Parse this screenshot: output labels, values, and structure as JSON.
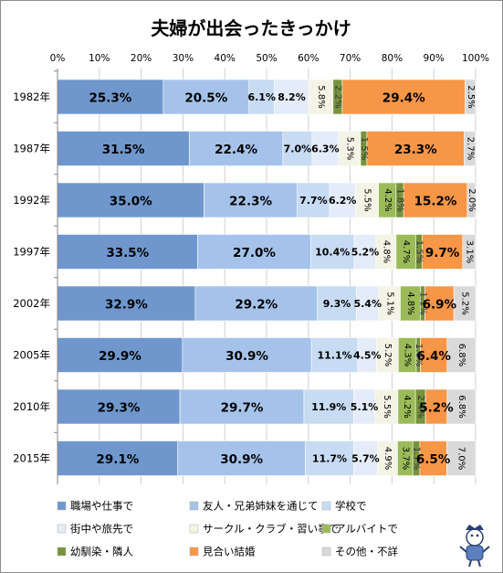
{
  "chart_data": {
    "type": "bar",
    "stacked": true,
    "orientation": "horizontal",
    "normalized": true,
    "title": "夫婦が出会ったきっかけ",
    "categories": [
      "1982年",
      "1987年",
      "1992年",
      "1997年",
      "2002年",
      "2005年",
      "2010年",
      "2015年"
    ],
    "xlim": [
      0,
      100
    ],
    "xticks": [
      "0%",
      "10%",
      "20%",
      "30%",
      "40%",
      "50%",
      "60%",
      "70%",
      "80%",
      "90%",
      "100%"
    ],
    "grid": true,
    "legend_position": "bottom",
    "series": [
      {
        "name": "職場や仕事で",
        "color": "#6f97cd",
        "values": [
          25.3,
          31.5,
          35.0,
          33.5,
          32.9,
          29.9,
          29.3,
          29.1
        ]
      },
      {
        "name": "友人・兄弟姉妹を通じて",
        "color": "#a5c3ea",
        "values": [
          20.5,
          22.4,
          22.3,
          27.0,
          29.2,
          30.9,
          29.7,
          30.9
        ]
      },
      {
        "name": "学校で",
        "color": "#c7dbf3",
        "values": [
          6.1,
          7.0,
          7.7,
          10.4,
          9.3,
          11.1,
          11.9,
          11.7
        ]
      },
      {
        "name": "街中や旅先で",
        "color": "#e3ecf8",
        "values": [
          8.2,
          6.3,
          6.2,
          5.2,
          5.4,
          4.5,
          5.1,
          5.7
        ]
      },
      {
        "name": "サークル・クラブ・習い事で",
        "color": "#f3f4e6",
        "values": [
          5.8,
          5.3,
          5.5,
          4.8,
          5.1,
          5.2,
          5.5,
          4.9
        ]
      },
      {
        "name": "アルバイトで",
        "color": "#9bbb59",
        "values": [
          null,
          null,
          4.2,
          4.7,
          4.8,
          4.3,
          4.2,
          3.7
        ]
      },
      {
        "name": "幼馴染・隣人",
        "color": "#77933c",
        "values": [
          2.2,
          1.5,
          1.8,
          1.5,
          1.1,
          1.0,
          2.4,
          1.7
        ]
      },
      {
        "name": "見合い結婚",
        "color": "#f79646",
        "values": [
          29.4,
          23.3,
          15.2,
          9.7,
          6.9,
          6.4,
          5.2,
          6.5
        ]
      },
      {
        "name": "その他・不詳",
        "color": "#d9d9d9",
        "values": [
          2.5,
          2.7,
          2.0,
          3.1,
          5.2,
          6.8,
          6.8,
          7.0
        ]
      }
    ],
    "data_labels": [
      [
        "25.3%",
        "20.5%",
        "6.1%",
        "8.2%",
        "5.8%",
        null,
        "2.2%",
        "29.4%",
        "2.5%"
      ],
      [
        "31.5%",
        "22.4%",
        "7.0%",
        "6.3%",
        "5.3%",
        null,
        "1.5%",
        "23.3%",
        "2.7%"
      ],
      [
        "35.0%",
        "22.3%",
        "7.7%",
        "6.2%",
        "5.5%",
        "4.2%",
        "1.8%",
        "15.2%",
        "2.0%"
      ],
      [
        "33.5%",
        "27.0%",
        "10.4%",
        "5.2%",
        "4.8%",
        "4.7%",
        "1.5%",
        "9.7%",
        "3.1%"
      ],
      [
        "32.9%",
        "29.2%",
        "9.3%",
        "5.4%",
        "5.1%",
        "4.8%",
        "1.1%",
        "6.9%",
        "5.2%"
      ],
      [
        "29.9%",
        "30.9%",
        "11.1%",
        "4.5%",
        "5.2%",
        "4.3%",
        "1.0%",
        "6.4%",
        "6.8%"
      ],
      [
        "29.3%",
        "29.7%",
        "11.9%",
        "5.1%",
        "5.5%",
        "4.2%",
        "2.4%",
        "5.2%",
        "6.8%"
      ],
      [
        "29.1%",
        "30.9%",
        "11.7%",
        "5.7%",
        "4.9%",
        "3.7%",
        "1.7%",
        "6.5%",
        "7.0%"
      ]
    ],
    "watermark_icon": "mascot-character-icon"
  }
}
